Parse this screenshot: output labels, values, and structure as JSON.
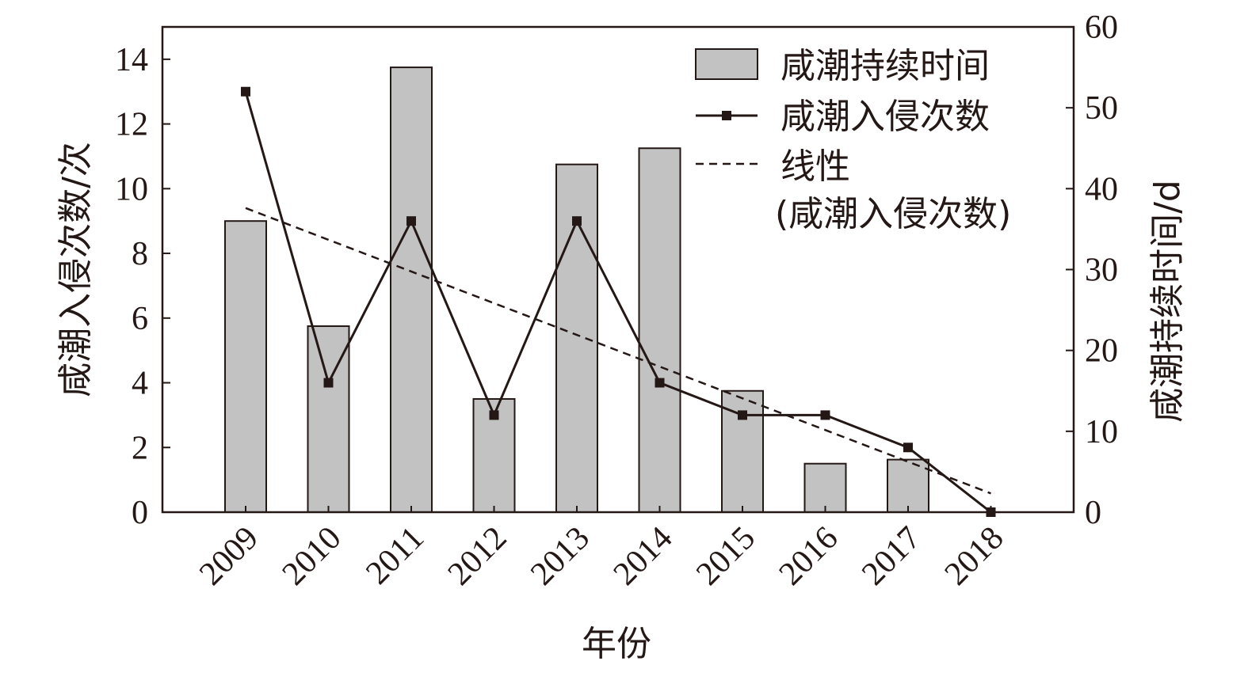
{
  "chart_data": {
    "type": "bar",
    "categories": [
      "2009",
      "2010",
      "2011",
      "2012",
      "2013",
      "2014",
      "2015",
      "2016",
      "2017",
      "2018"
    ],
    "series": [
      {
        "name": "咸潮持续时间",
        "type": "bar",
        "axis": "right",
        "values": [
          36,
          23,
          55,
          14,
          43,
          45,
          15,
          6,
          6.5,
          0
        ]
      },
      {
        "name": "咸潮入侵次数",
        "type": "line",
        "axis": "left",
        "marker": "square",
        "values": [
          13,
          4,
          9,
          3,
          9,
          4,
          3,
          3,
          2,
          0
        ]
      },
      {
        "name": "线性\n(咸潮入侵次数)",
        "type": "trendline",
        "axis": "left",
        "values": [
          9.4,
          8.42,
          7.44,
          6.46,
          5.48,
          4.5,
          3.52,
          2.54,
          1.56,
          0.58
        ]
      }
    ],
    "xlabel": "年份",
    "ylabel": "咸潮入侵次数/次",
    "y2label": "咸潮持续时间/d",
    "ylim": [
      0,
      15
    ],
    "y2lim": [
      0,
      60
    ],
    "yticks": [
      0,
      2,
      4,
      6,
      8,
      10,
      12,
      14
    ],
    "y2ticks": [
      0,
      10,
      20,
      30,
      40,
      50,
      60
    ],
    "grid": false,
    "legend_position": "top-right",
    "colors": {
      "bar_fill": "#c2c2c2",
      "stroke": "#231815",
      "marker": "#231815"
    }
  }
}
